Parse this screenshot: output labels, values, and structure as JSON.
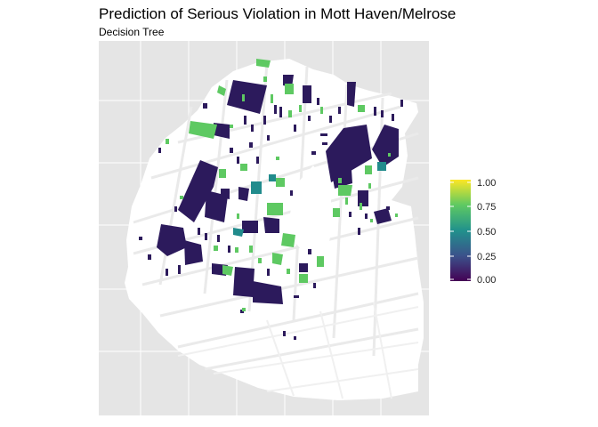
{
  "title": "Prediction of Serious Violation in Mott Haven/Melrose",
  "subtitle": "Decision Tree",
  "legend": {
    "ticks": [
      {
        "value": 1.0,
        "label": "1.00"
      },
      {
        "value": 0.75,
        "label": "0.75"
      },
      {
        "value": 0.5,
        "label": "0.50"
      },
      {
        "value": 0.25,
        "label": "0.25"
      },
      {
        "value": 0.0,
        "label": "0.00"
      }
    ],
    "colors": [
      "#440154",
      "#3b528b",
      "#21918c",
      "#5ec962",
      "#fde725"
    ]
  },
  "colors": {
    "panel": "#e5e5e5",
    "gridline": "#ffffff",
    "land": "#ffffff",
    "low": "#2c1a5c",
    "teal": "#218b8c",
    "green": "#5ec962"
  }
}
